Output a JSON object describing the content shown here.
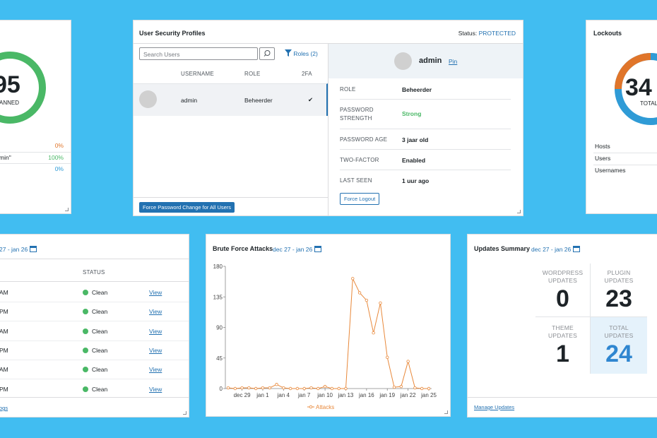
{
  "scan_card": {
    "value": "95",
    "label": "ANNED",
    "rows": [
      {
        "value": "0%"
      },
      {
        "name": "min\"",
        "value": "100%"
      },
      {
        "value": "0%"
      }
    ]
  },
  "user_profiles": {
    "title": "User Security Profiles",
    "status_label": "Status:",
    "status": "PROTECTED",
    "search_placeholder": "Search Users",
    "filter": "Roles (2)",
    "columns": [
      "USERNAME",
      "ROLE",
      "2FA"
    ],
    "rows": [
      {
        "username": "admin",
        "role": "Beheerder",
        "twofa": "✔"
      }
    ],
    "bulk_button": "Force Password Change for All Users",
    "detail": {
      "name": "admin",
      "pin": "Pin",
      "fields": [
        {
          "label": "ROLE",
          "value": "Beheerder"
        },
        {
          "label": "PASSWORD STRENGTH",
          "value": "Strong"
        },
        {
          "label": "PASSWORD AGE",
          "value": "3 jaar old"
        },
        {
          "label": "TWO-FACTOR",
          "value": "Enabled"
        },
        {
          "label": "LAST SEEN",
          "value": "1 uur ago"
        }
      ],
      "button": "Force Logout"
    }
  },
  "lockouts": {
    "title": "Lockouts",
    "value": "34",
    "label": "TOTAL",
    "rows": [
      "Hosts",
      "Users",
      "Usernames"
    ]
  },
  "logs_card": {
    "date_range": "27 - jan 26",
    "column": "STATUS",
    "rows": [
      {
        "time": "AM",
        "status": "Clean",
        "link": "View"
      },
      {
        "time": "PM",
        "status": "Clean",
        "link": "View"
      },
      {
        "time": "AM",
        "status": "Clean",
        "link": "View"
      },
      {
        "time": "PM",
        "status": "Clean",
        "link": "View"
      },
      {
        "time": "AM",
        "status": "Clean",
        "link": "View"
      },
      {
        "time": "PM",
        "status": "Clean",
        "link": "View"
      }
    ],
    "footer": "ogs"
  },
  "chart_data": {
    "type": "line",
    "title": "Brute Force Attacks",
    "date_range": "dec 27 - jan 26",
    "categories": [
      null,
      null,
      "dec 29",
      null,
      null,
      "jan 1",
      null,
      null,
      "jan 4",
      null,
      null,
      "jan 7",
      null,
      null,
      "jan 10",
      null,
      null,
      "jan 13",
      null,
      null,
      "jan 16",
      null,
      null,
      "jan 19",
      null,
      null,
      "jan 22",
      null,
      null,
      "jan 25"
    ],
    "series": [
      {
        "name": "Attacks",
        "color": "#e8883a",
        "values": [
          1,
          0,
          1,
          1,
          0,
          1,
          1,
          6,
          1,
          0,
          0,
          0,
          1,
          0,
          3,
          0,
          0,
          0,
          162,
          141,
          130,
          82,
          126,
          46,
          2,
          3,
          40,
          1,
          0,
          0
        ]
      }
    ],
    "ylim": [
      0,
      180
    ],
    "yticks": [
      0,
      45,
      90,
      135,
      180
    ],
    "grid": false,
    "legend": "bottom"
  },
  "updates": {
    "title": "Updates Summary",
    "date_range": "dec 27 - jan 26",
    "cells": [
      {
        "label": "WORDPRESS UPDATES",
        "value": "0"
      },
      {
        "label": "PLUGIN UPDATES",
        "value": "23"
      },
      {
        "label": "THEME UPDATES",
        "value": "1"
      },
      {
        "label": "TOTAL UPDATES",
        "value": "24"
      }
    ],
    "footer": "Manage Updates"
  }
}
